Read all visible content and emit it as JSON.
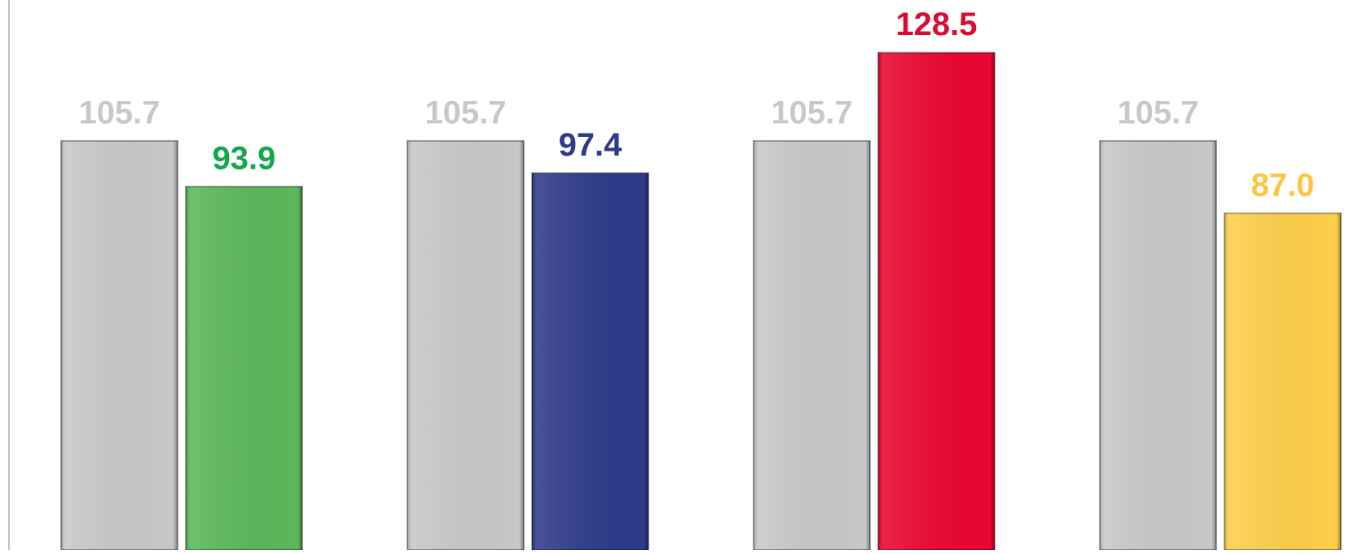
{
  "chart_data": {
    "type": "bar",
    "categories": [
      null,
      null,
      null,
      null
    ],
    "series": [
      {
        "color": "#c8c8c8",
        "values": [
          105.7,
          105.7,
          105.7,
          105.7
        ]
      },
      {
        "colors": [
          "#5cb85a",
          "#2e3a8a",
          "#ea0632",
          "#fecf4a"
        ],
        "label_colors": [
          "#12a94e",
          "#2e3a8a",
          "#da0b32",
          "#fec543"
        ],
        "values": [
          93.9,
          97.4,
          128.5,
          87.0
        ],
        "value_labels": [
          "93.9",
          "97.4",
          "128.5",
          "87.0"
        ]
      }
    ],
    "ylim": [
      0,
      140
    ]
  }
}
